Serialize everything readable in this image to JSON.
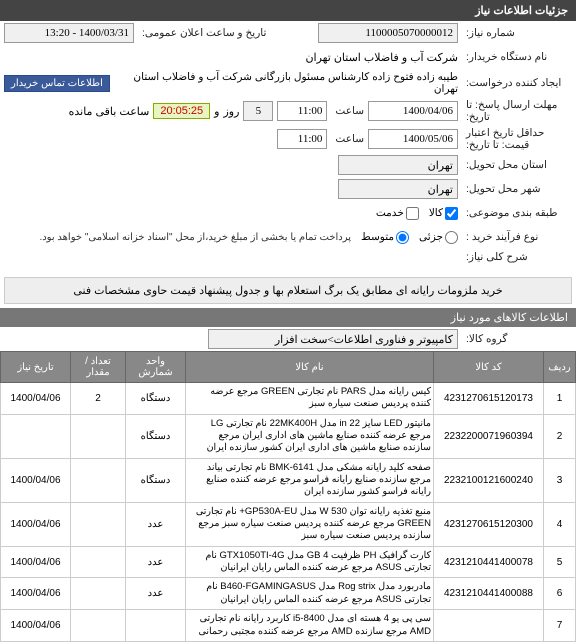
{
  "header": {
    "title": "جزئیات اطلاعات نیاز"
  },
  "form": {
    "need_no_label": "شماره نیاز:",
    "need_no": "1100005070000012",
    "announce_label": "تاریخ و ساعت اعلان عمومی:",
    "announce": "1400/03/31 - 13:20",
    "buyer_org_label": "نام دستگاه خریدار:",
    "buyer_org": "شرکت آب و فاضلاب استان تهران",
    "creator_label": "ایجاد کننده درخواست:",
    "creator": "طیبه زاده فتوح زاده کارشناس مسئول بازرگانی شرکت آب و فاضلاب استان تهران",
    "contact_btn": "اطلاعات تماس خریدار",
    "deadline_send_label": "مهلت ارسال پاسخ: تا تاریخ:",
    "deadline_send_date": "1400/04/06",
    "deadline_send_time_label": "ساعت",
    "deadline_send_time": "11:00",
    "and_label": "و",
    "countdown": "20:05:25",
    "remain_label": "ساعت باقی مانده",
    "day_count": "5",
    "day_label": "روز",
    "validity_label": "حداقل تاریخ اعتبار قیمت: تا تاریخ:",
    "validity_date": "1400/05/06",
    "validity_time_label": "ساعت",
    "validity_time": "11:00",
    "delivery_state_label": "استان محل تحویل:",
    "delivery_state": "تهران",
    "delivery_city_label": "شهر محل تحویل:",
    "delivery_city": "تهران",
    "budget_label": "طبقه بندی موضوعی:",
    "budget_opts": {
      "goods": "کالا",
      "service": "خدمت"
    },
    "budget_checked": "goods",
    "process_label": "نوع فرآیند خرید :",
    "process_opts": {
      "low": "جزئی",
      "mid": "متوسط"
    },
    "process_checked": "mid",
    "buy_note": "پرداخت تمام یا بخشی از مبلغ خرید،از محل \"اسناد خزانه اسلامی\" خواهد بود.",
    "desc_label": "شرح کلی نیاز:",
    "desc": "خرید ملزومات رایانه ای مطابق یک برگ استعلام بها و جدول پیشنهاد قیمت حاوی مشخصات فنی"
  },
  "items_section": {
    "title": "اطلاعات کالاهای مورد نیاز",
    "group_label": "گروه کالا:",
    "group": "کامپیوتر و فناوری اطلاعات>سخت افزار"
  },
  "table": {
    "cols": [
      "ردیف",
      "کد کالا",
      "نام کالا",
      "واحد شمارش",
      "تعداد / مقدار",
      "تاریخ نیاز"
    ],
    "rows": [
      {
        "n": "1",
        "code": "4231270615120173",
        "name": "کیس رایانه مدل PARS نام تجارتی GREEN مرجع عرضه کننده پردیس صنعت سیاره سبز",
        "unit": "دستگاه",
        "qty": "2",
        "date": "1400/04/06"
      },
      {
        "n": "2",
        "code": "2232200071960394",
        "name": "مانیتور LED سایز 22 in مدل 22MK400H نام تجارتی LG مرجع عرضه کننده صنایع ماشین های اداری ایران مرجع سازنده صنایع ماشین های اداری ایران کشور سازنده ایران",
        "unit": "دستگاه",
        "qty": "",
        "date": ""
      },
      {
        "n": "3",
        "code": "2232100121600240",
        "name": "صفحه کلید رایانه مشکی مدل BMK-6141 نام تجارتی بیاند مرجع سازنده صنایع رایانه فراسو مرجع عرضه کننده صنایع رایانه فراسو کشور سازنده ایران",
        "unit": "دستگاه",
        "qty": "",
        "date": "1400/04/06"
      },
      {
        "n": "4",
        "code": "4231270615120300",
        "name": "منبع تغذیه رایانه توان 530 W مدل GP530A-EU+ نام تجارتی GREEN مرجع عرضه کننده پردیس صنعت سیاره سبز مرجع سازنده پردیس صنعت سیاره سبز",
        "unit": "عدد",
        "qty": "",
        "date": "1400/04/06"
      },
      {
        "n": "5",
        "code": "4231210441400078",
        "name": "کارت گرافیک PH ظرفیت 4 GB مدل GTX1050TI-4G نام تجارتی ASUS مرجع عرضه کننده الماس رایان ایرانیان",
        "unit": "عدد",
        "qty": "",
        "date": "1400/04/06"
      },
      {
        "n": "6",
        "code": "4231210441400088",
        "name": "مادربورد مدل Rog strix مدل B460-FGAMINGASUS نام تجارتی ASUS مرجع عرضه کننده الماس رایان ایرانیان",
        "unit": "عدد",
        "qty": "",
        "date": "1400/04/06"
      },
      {
        "n": "7",
        "code": "",
        "name": "سی پی یو 4 هسته ای مدل i5-8400 کاربرد رایانه نام تجارتی AMD مرجع سازنده AMD مرجع عرضه کننده مجتبی رحمانی",
        "unit": "",
        "qty": "",
        "date": "1400/04/06"
      }
    ]
  }
}
